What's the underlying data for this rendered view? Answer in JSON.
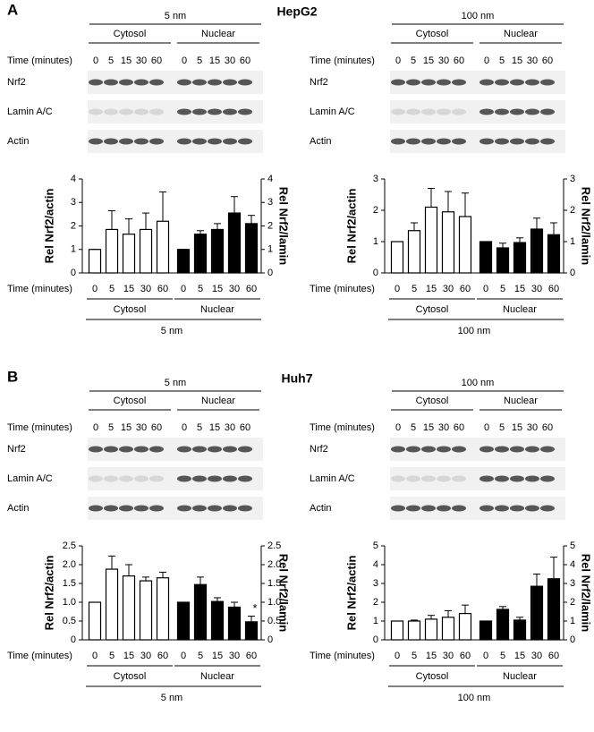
{
  "chart_data": [
    {
      "type": "bar",
      "panel": "A",
      "title": "HepG2",
      "dose": "5 nm",
      "time_label": "Time (minutes)",
      "blot_rows": [
        "Nrf2",
        "Lamin A/C",
        "Actin"
      ],
      "categories": [
        "0",
        "5",
        "15",
        "30",
        "60"
      ],
      "ylabel": "Rel Nrf2/actin",
      "y2label": "Rel Nrf2/lamin",
      "ylim": [
        0,
        4
      ],
      "yticks": [
        0,
        1,
        2,
        3,
        4
      ],
      "y2lim": [
        0,
        4
      ],
      "y2ticks": [
        0,
        1,
        2,
        3,
        4
      ],
      "series": [
        {
          "name": "Cytosol",
          "color": "#ffffff",
          "values": [
            1,
            1.85,
            1.65,
            1.85,
            2.2
          ],
          "errors": [
            0,
            0.8,
            0.65,
            0.7,
            1.25
          ]
        },
        {
          "name": "Nuclear",
          "color": "#000000",
          "axis": "y2",
          "values": [
            1,
            1.65,
            1.85,
            2.55,
            2.1
          ],
          "errors": [
            0,
            0.15,
            0.25,
            0.7,
            0.35
          ]
        }
      ]
    },
    {
      "type": "bar",
      "dose": "100 nm",
      "time_label": "Time (minutes)",
      "blot_rows": [
        "Nrf2",
        "Lamin A/C",
        "Actin"
      ],
      "categories": [
        "0",
        "5",
        "15",
        "30",
        "60"
      ],
      "ylabel": "Rel Nrf2/actin",
      "y2label": "Rel Nrf2/lamin",
      "ylim": [
        0,
        3
      ],
      "yticks": [
        0,
        1,
        2,
        3
      ],
      "y2lim": [
        0,
        3
      ],
      "y2ticks": [
        0,
        1,
        2,
        3
      ],
      "series": [
        {
          "name": "Cytosol",
          "color": "#ffffff",
          "values": [
            1,
            1.35,
            2.1,
            1.95,
            1.8
          ],
          "errors": [
            0,
            0.25,
            0.6,
            0.65,
            0.75
          ]
        },
        {
          "name": "Nuclear",
          "color": "#000000",
          "axis": "y2",
          "values": [
            1,
            0.8,
            0.97,
            1.4,
            1.22
          ],
          "errors": [
            0,
            0.15,
            0.15,
            0.35,
            0.38
          ]
        }
      ]
    },
    {
      "type": "bar",
      "panel": "B",
      "title": "Huh7",
      "dose": "5 nm",
      "time_label": "Time (minutes)",
      "blot_rows": [
        "Nrf2",
        "Lamin A/C",
        "Actin"
      ],
      "categories": [
        "0",
        "5",
        "15",
        "30",
        "60"
      ],
      "ylabel": "Rel Nrf2/actin",
      "y2label": "Rel Nrf2/lamin",
      "ylim": [
        0,
        2.5
      ],
      "yticks": [
        0,
        0.5,
        {
          "value": 1,
          "label": "1.0"
        },
        1.5,
        {
          "value": 2,
          "label": "2.0"
        },
        2.5
      ],
      "y2lim": [
        0,
        2.5
      ],
      "y2ticks": [
        0,
        0.5,
        {
          "value": 1,
          "label": "1.0"
        },
        1.5,
        {
          "value": 2,
          "label": "2.0"
        },
        2.5
      ],
      "annotation": "*",
      "series": [
        {
          "name": "Cytosol",
          "color": "#ffffff",
          "values": [
            1,
            1.88,
            1.7,
            1.57,
            1.65
          ],
          "errors": [
            0,
            0.35,
            0.3,
            0.1,
            0.15
          ]
        },
        {
          "name": "Nuclear",
          "color": "#000000",
          "axis": "y2",
          "values": [
            1,
            1.47,
            1.02,
            0.87,
            0.48
          ],
          "errors": [
            0,
            0.2,
            0.1,
            0.13,
            0.15
          ]
        }
      ]
    },
    {
      "type": "bar",
      "dose": "100 nm",
      "time_label": "Time (minutes)",
      "blot_rows": [
        "Nrf2",
        "Lamin A/C",
        "Actin"
      ],
      "categories": [
        "0",
        "5",
        "15",
        "30",
        "60"
      ],
      "ylabel": "Rel Nrf2/actin",
      "y2label": "Rel Nrf2/lamin",
      "ylim": [
        0,
        5
      ],
      "yticks": [
        0,
        1,
        2,
        3,
        4,
        5
      ],
      "y2lim": [
        0,
        5
      ],
      "y2ticks": [
        0,
        1,
        2,
        3,
        4,
        5
      ],
      "series": [
        {
          "name": "Cytosol",
          "color": "#ffffff",
          "values": [
            1,
            1,
            1.1,
            1.2,
            1.4
          ],
          "errors": [
            0,
            0.05,
            0.2,
            0.35,
            0.45
          ]
        },
        {
          "name": "Nuclear",
          "color": "#000000",
          "axis": "y2",
          "values": [
            1,
            1.62,
            1.05,
            2.85,
            3.25
          ],
          "errors": [
            0,
            0.15,
            0.15,
            0.65,
            1.15
          ]
        }
      ]
    }
  ]
}
